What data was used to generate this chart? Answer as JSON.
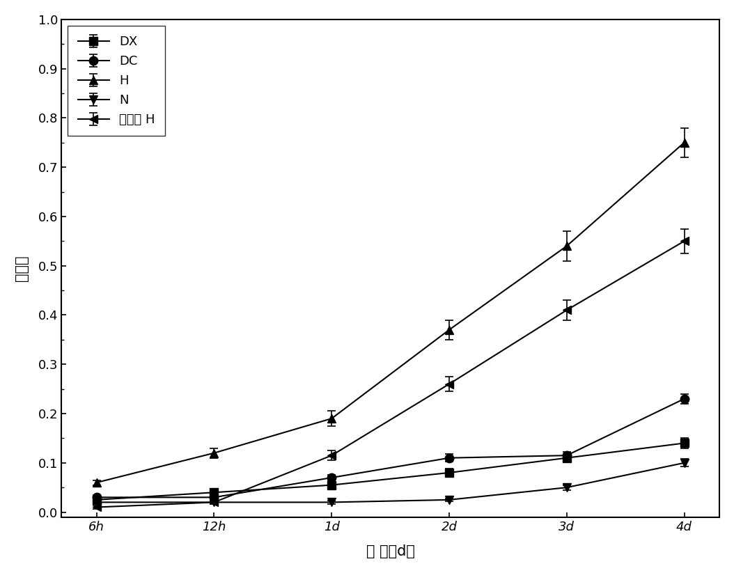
{
  "x_labels": [
    "6h",
    "12h",
    "1d",
    "2d",
    "3d",
    "4d"
  ],
  "x_values": [
    0,
    1,
    2,
    3,
    4,
    5
  ],
  "series": {
    "DX": {
      "y": [
        0.025,
        0.04,
        0.055,
        0.08,
        0.11,
        0.14
      ],
      "yerr": [
        0.005,
        0.005,
        0.005,
        0.008,
        0.008,
        0.01
      ],
      "marker": "s",
      "label": "DX"
    },
    "DC": {
      "y": [
        0.03,
        0.03,
        0.07,
        0.11,
        0.115,
        0.23
      ],
      "yerr": [
        0.005,
        0.005,
        0.005,
        0.008,
        0.008,
        0.01
      ],
      "marker": "o",
      "label": "DC"
    },
    "H": {
      "y": [
        0.06,
        0.12,
        0.19,
        0.37,
        0.54,
        0.75
      ],
      "yerr": [
        0.005,
        0.01,
        0.015,
        0.02,
        0.03,
        0.03
      ],
      "marker": "^",
      "label": "H"
    },
    "N": {
      "y": [
        0.02,
        0.02,
        0.02,
        0.025,
        0.05,
        0.1
      ],
      "yerr": [
        0.003,
        0.003,
        0.003,
        0.003,
        0.005,
        0.008
      ],
      "marker": "v",
      "label": "N"
    },
    "CJY_H": {
      "y": [
        0.01,
        0.02,
        0.115,
        0.26,
        0.41,
        0.55
      ],
      "yerr": [
        0.003,
        0.003,
        0.01,
        0.015,
        0.02,
        0.025
      ],
      "marker": "<",
      "label": "粗酶液 H"
    }
  },
  "ylim": [
    0.0,
    1.0
  ],
  "yticks": [
    0.0,
    0.1,
    0.2,
    0.3,
    0.4,
    0.5,
    0.6,
    0.7,
    0.8,
    0.9,
    1.0
  ],
  "ylabel": "脱色率",
  "xlabel": "时 间（d）",
  "line_color": "#000000",
  "background_color": "#ffffff",
  "legend_fontsize": 13,
  "axis_fontsize": 15,
  "tick_fontsize": 13
}
